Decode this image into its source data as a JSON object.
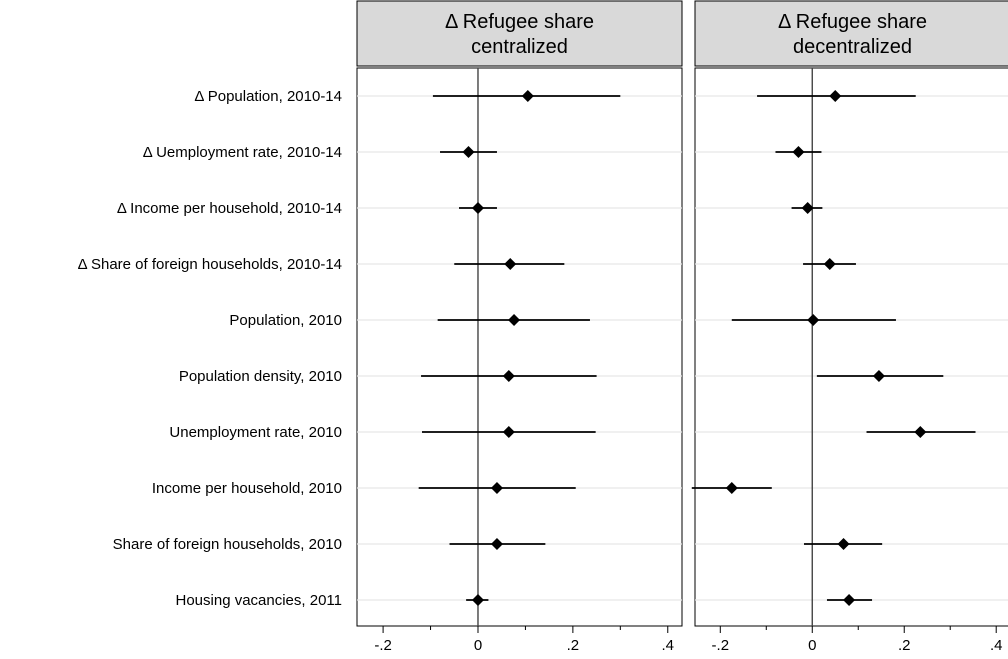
{
  "chart_data": {
    "type": "scatter",
    "variant": "coefficient-plot-with-confidence-intervals",
    "row_labels": [
      "Δ Population, 2010-14",
      "Δ Uemployment rate, 2010-14",
      "Δ Income per household, 2010-14",
      "Δ Share of foreign households, 2010-14",
      "Population, 2010",
      "Population density, 2010",
      "Unemployment rate, 2010",
      "Income per household, 2010",
      "Share of foreign households, 2010",
      "Housing vacancies, 2011"
    ],
    "xlim": [
      -0.255,
      0.43
    ],
    "x_ticks": [
      -0.2,
      0,
      0.2,
      0.4
    ],
    "x_tick_labels": [
      "-.2",
      "0",
      ".2",
      ".4"
    ],
    "reference_line_x": 0,
    "grid": "horizontal",
    "marker": "diamond",
    "panels": [
      {
        "title_lines": [
          "Δ Refugee share",
          "centralized"
        ],
        "estimates": [
          0.105,
          -0.02,
          0.0,
          0.068,
          0.076,
          0.065,
          0.065,
          0.04,
          0.04,
          0.0
        ],
        "ci_low": [
          -0.095,
          -0.08,
          -0.04,
          -0.05,
          -0.085,
          -0.12,
          -0.118,
          -0.125,
          -0.06,
          -0.025
        ],
        "ci_high": [
          0.3,
          0.04,
          0.04,
          0.182,
          0.236,
          0.25,
          0.248,
          0.206,
          0.142,
          0.022
        ]
      },
      {
        "title_lines": [
          "Δ Refugee share",
          "decentralized"
        ],
        "estimates": [
          0.05,
          -0.03,
          -0.01,
          0.038,
          0.002,
          0.145,
          0.235,
          -0.175,
          0.068,
          0.08
        ],
        "ci_low": [
          -0.12,
          -0.08,
          -0.045,
          -0.02,
          -0.175,
          0.01,
          0.118,
          -0.262,
          -0.018,
          0.032
        ],
        "ci_high": [
          0.225,
          0.02,
          0.022,
          0.095,
          0.182,
          0.285,
          0.355,
          -0.088,
          0.152,
          0.13
        ]
      }
    ]
  }
}
